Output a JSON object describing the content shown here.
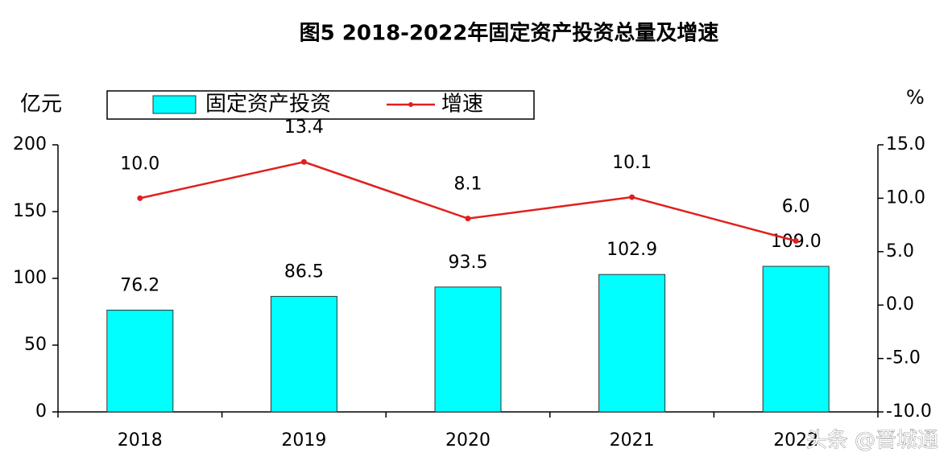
{
  "chart_data": {
    "type": "bar_line",
    "title": "图5 2018-2022年固定资产投资总量及增速",
    "y_label": "亿元",
    "y2_label": "%",
    "categories": [
      "2018",
      "2019",
      "2020",
      "2021",
      "2022"
    ],
    "series": [
      {
        "name": "固定资产投资",
        "type": "bar",
        "color": "#00ffff",
        "values": [
          76.2,
          86.5,
          93.5,
          102.9,
          109.0
        ],
        "value_labels": [
          "76.2",
          "86.5",
          "93.5",
          "102.9",
          "109.0"
        ]
      },
      {
        "name": "增速",
        "type": "line",
        "axis": "y2",
        "color": "#e0201e",
        "values": [
          10.0,
          13.4,
          8.1,
          10.1,
          6.0
        ],
        "value_labels": [
          "10.0",
          "13.4",
          "8.1",
          "10.1",
          "6.0"
        ]
      }
    ],
    "ylim": [
      0,
      200
    ],
    "yticks": [
      0,
      50,
      100,
      150,
      200
    ],
    "y2lim": [
      -10,
      15
    ],
    "y2ticks": [
      {
        "value": -10,
        "label": "-10.0"
      },
      {
        "value": -5,
        "label": "-5.0"
      },
      {
        "value": 0,
        "label": "0.0"
      },
      {
        "value": 5,
        "label": "5.0"
      },
      {
        "value": 10,
        "label": "10.0"
      },
      {
        "value": 15,
        "label": "15.0"
      }
    ],
    "grid": false
  },
  "watermark": "头条 @晋城通"
}
